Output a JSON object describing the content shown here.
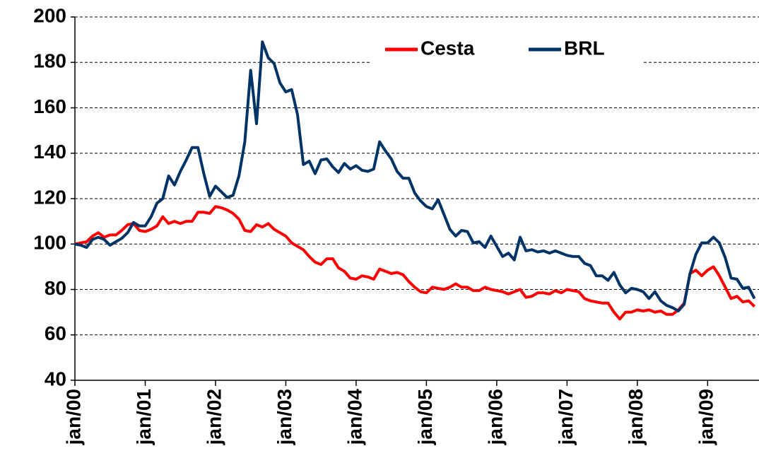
{
  "chart_data": {
    "type": "line",
    "categories": [
      "jan/00",
      null,
      null,
      null,
      null,
      null,
      null,
      null,
      null,
      null,
      null,
      null,
      "jan/01",
      null,
      null,
      null,
      null,
      null,
      null,
      null,
      null,
      null,
      null,
      null,
      "jan/02",
      null,
      null,
      null,
      null,
      null,
      null,
      null,
      null,
      null,
      null,
      null,
      "jan/03",
      null,
      null,
      null,
      null,
      null,
      null,
      null,
      null,
      null,
      null,
      null,
      "jan/04",
      null,
      null,
      null,
      null,
      null,
      null,
      null,
      null,
      null,
      null,
      null,
      "jan/05",
      null,
      null,
      null,
      null,
      null,
      null,
      null,
      null,
      null,
      null,
      null,
      "jan/06",
      null,
      null,
      null,
      null,
      null,
      null,
      null,
      null,
      null,
      null,
      null,
      "jan/07",
      null,
      null,
      null,
      null,
      null,
      null,
      null,
      null,
      null,
      null,
      null,
      "jan/08",
      null,
      null,
      null,
      null,
      null,
      null,
      null,
      null,
      null,
      null,
      null,
      "jan/09",
      null,
      null,
      null,
      null,
      null,
      null,
      null,
      null
    ],
    "series": [
      {
        "name": "Cesta",
        "color": "#ff0000",
        "values": [
          100,
          100.5,
          101,
          103.5,
          105,
          103,
          104,
          104,
          106,
          108.5,
          109,
          106,
          105.5,
          106.5,
          108,
          112,
          109,
          110,
          109,
          110,
          110,
          114,
          114,
          113.5,
          116.5,
          116,
          115,
          113.5,
          111,
          106,
          105.5,
          108.5,
          107.5,
          109,
          106.5,
          105,
          103.5,
          100.5,
          99,
          97.5,
          94.5,
          92,
          91,
          93.5,
          93.5,
          89.5,
          88,
          85,
          84.5,
          86,
          85.5,
          84.5,
          89,
          88,
          87,
          87.5,
          86.5,
          83.5,
          81,
          79,
          78.5,
          81,
          80.5,
          80,
          81,
          82.5,
          81,
          81,
          79.5,
          79.5,
          81,
          80,
          79.5,
          79,
          78,
          79,
          80,
          76.5,
          77,
          78.5,
          78.5,
          78,
          79.5,
          78.5,
          80,
          79.5,
          79,
          76,
          75,
          74.5,
          74,
          74,
          70,
          67,
          70,
          70,
          71,
          70.5,
          71,
          70,
          70.5,
          69,
          69,
          71,
          74,
          87,
          88.5,
          86,
          88.5,
          90,
          86,
          81,
          76,
          77,
          74.5,
          75,
          72.5
        ]
      },
      {
        "name": "BRL",
        "color": "#003366",
        "values": [
          100,
          99.5,
          98.5,
          102,
          103,
          102,
          99.5,
          101,
          102.5,
          105,
          109.5,
          108,
          108,
          112,
          118,
          120,
          130,
          126,
          132,
          137,
          142.5,
          142.5,
          131,
          121,
          125.5,
          123,
          120.5,
          121.5,
          130,
          145,
          176.5,
          153,
          189,
          182,
          179.5,
          171,
          167,
          168,
          157,
          135,
          136.5,
          131,
          137,
          137.5,
          134,
          131.5,
          135.5,
          133,
          134.5,
          132.5,
          132,
          133,
          145,
          141,
          137.5,
          132,
          129,
          129,
          122.5,
          119,
          116.5,
          115.5,
          119.5,
          113,
          106.5,
          103.5,
          106,
          105.5,
          100.5,
          101,
          98.5,
          103.5,
          99,
          94.5,
          96,
          93,
          103,
          97,
          97.5,
          96.5,
          97,
          96,
          97,
          96,
          95,
          94.5,
          94.5,
          91.5,
          90.5,
          86,
          86,
          84,
          87.5,
          82,
          78.5,
          80.5,
          80,
          79,
          76,
          79,
          75,
          73,
          72,
          70.5,
          73.5,
          87,
          95.5,
          100.5,
          100.5,
          103,
          100.5,
          94,
          85,
          84.5,
          80.5,
          81,
          76
        ]
      }
    ],
    "ylim": [
      40,
      200
    ],
    "yticks": [
      40,
      60,
      80,
      100,
      120,
      140,
      160,
      180,
      200
    ],
    "grid": true,
    "legend": "top"
  }
}
